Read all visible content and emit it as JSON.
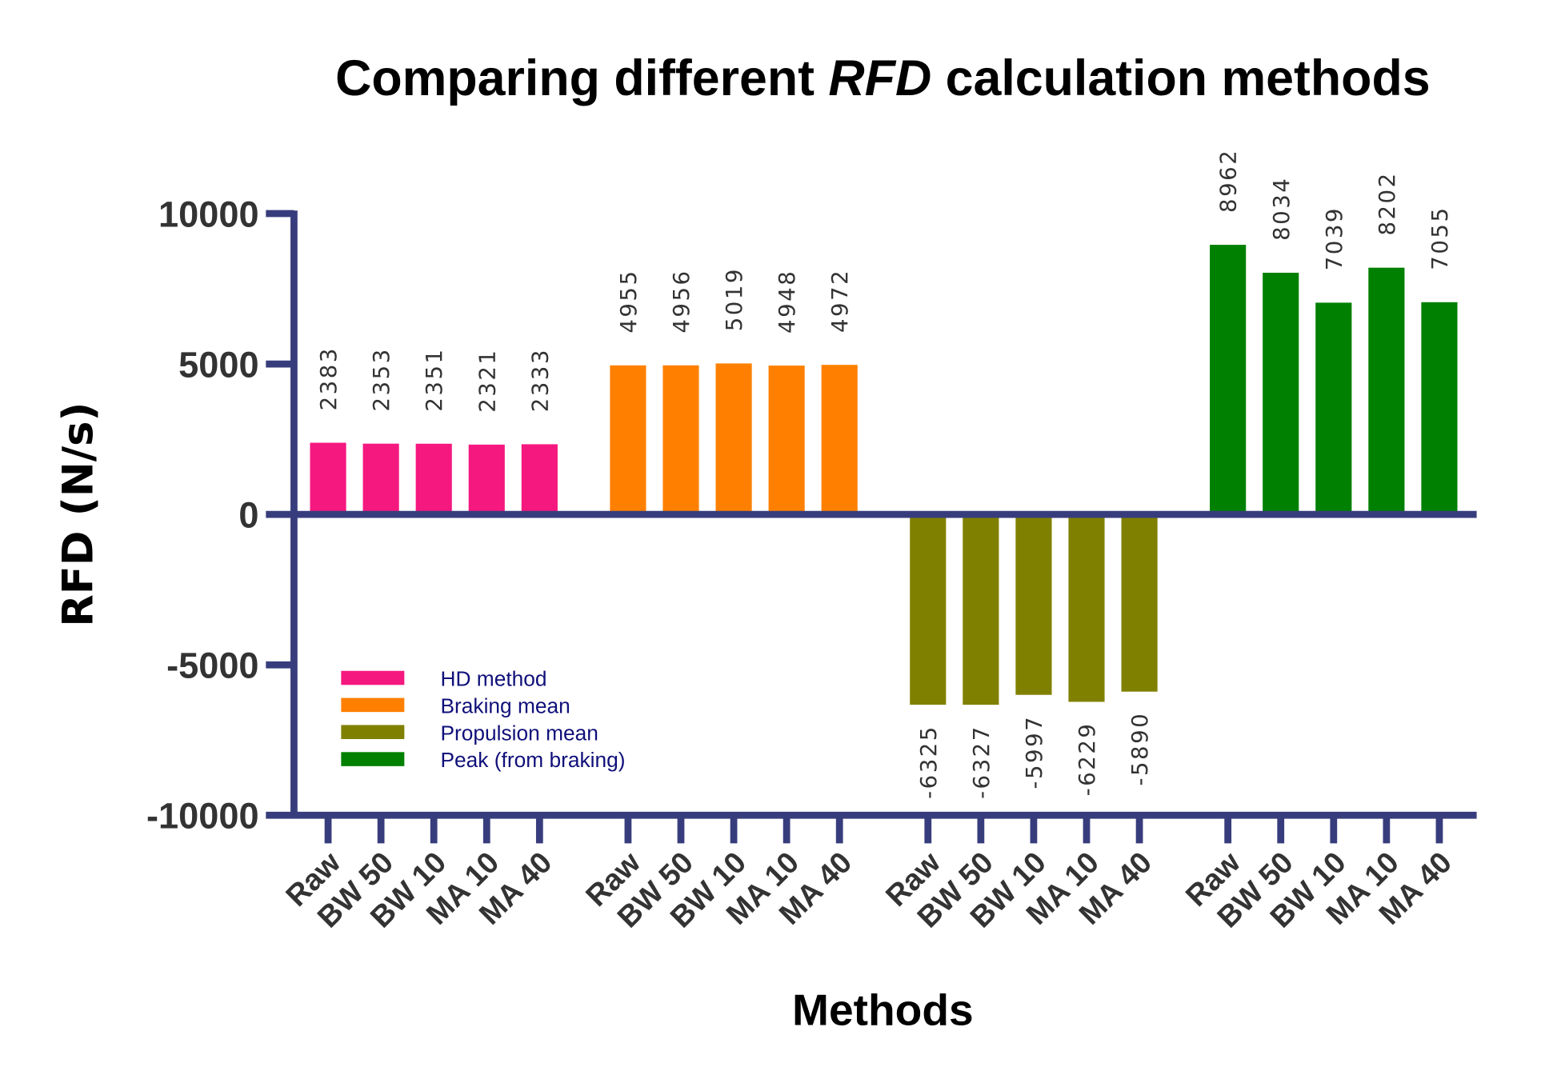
{
  "chart_data": {
    "type": "bar",
    "title_parts": [
      "Comparing different ",
      "RFD",
      " calculation methods"
    ],
    "xlabel": "Methods",
    "ylabel": "RFD (N/s)",
    "ylim": [
      -10000,
      10000
    ],
    "yticks": [
      "10000",
      "5000",
      "0",
      "-5000",
      "-10000"
    ],
    "ytick_values": [
      10000,
      5000,
      0,
      -5000,
      -10000
    ],
    "grid": false,
    "legend_placement": "lower-left",
    "categories": [
      "Raw",
      "BW 50",
      "BW 10",
      "MA 10",
      "MA 40"
    ],
    "series": [
      {
        "name": "HD method",
        "color": "#f5187f",
        "values": [
          2383,
          2353,
          2351,
          2321,
          2333
        ]
      },
      {
        "name": "Braking mean",
        "color": "#ff8000",
        "values": [
          4955,
          4956,
          5019,
          4948,
          4972
        ]
      },
      {
        "name": "Propulsion mean",
        "color": "#808000",
        "values": [
          -6325,
          -6327,
          -5997,
          -6229,
          -5890
        ]
      },
      {
        "name": "Peak (from braking)",
        "color": "#008000",
        "values": [
          8962,
          8034,
          7039,
          8202,
          7055
        ]
      }
    ],
    "data_labels": true,
    "axis_color": "#373d7c"
  }
}
